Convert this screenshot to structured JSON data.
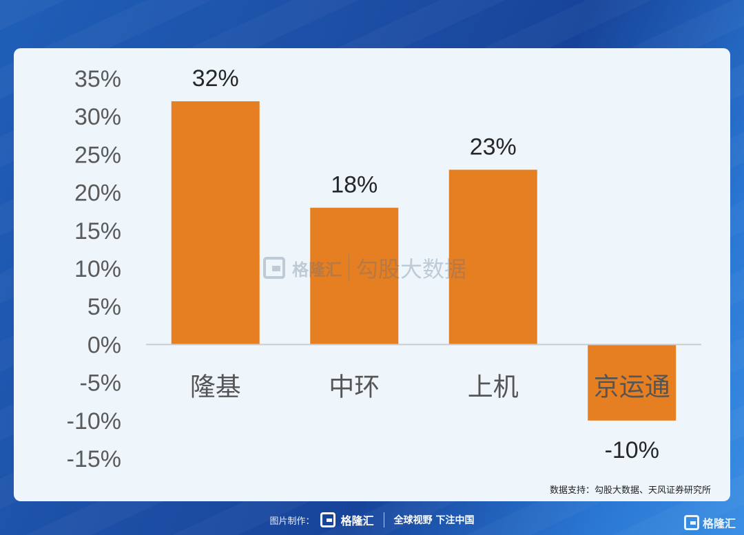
{
  "chart_data": {
    "type": "bar",
    "categories": [
      "隆基",
      "中环",
      "上机",
      "京运通"
    ],
    "values": [
      32,
      18,
      23,
      -10
    ],
    "data_labels": [
      "32%",
      "18%",
      "23%",
      "-10%"
    ],
    "y_ticks": [
      "35%",
      "30%",
      "25%",
      "20%",
      "15%",
      "10%",
      "5%",
      "0%",
      "-5%",
      "-10%",
      "-15%"
    ],
    "ylim": [
      -15,
      35
    ],
    "bar_color": "#e67e22",
    "grid": false
  },
  "source": "数据支持：勾股大数据、天风证券研究所",
  "watermark": {
    "brand": "格隆汇",
    "text": "勾股大数据"
  },
  "footer": {
    "label": "图片制作：",
    "brand": "格隆汇",
    "slogan": "全球视野 下注中国"
  },
  "corner_brand": "格隆汇"
}
